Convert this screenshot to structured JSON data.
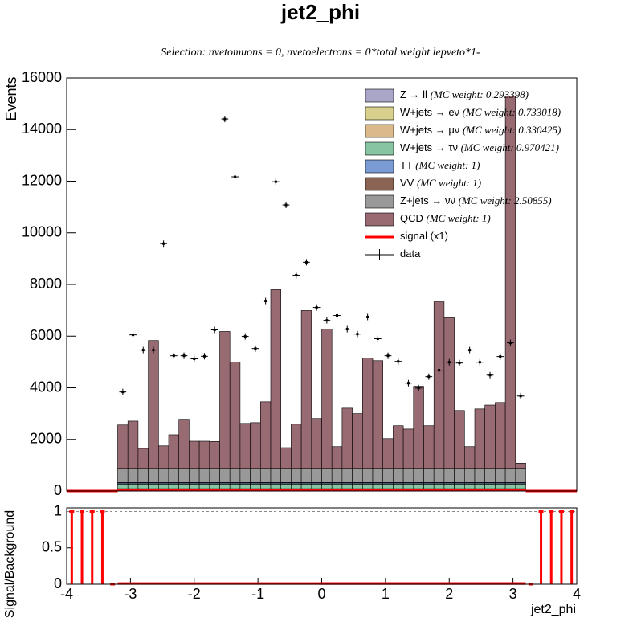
{
  "chart_data": [
    {
      "type": "histogram",
      "title": "jet2_phi",
      "subtitle": "Selection: nvetomuons = 0, nvetoelectrons = 0*total weight lepveto*1-",
      "ylabel": "Events",
      "xlim": [
        -4,
        4
      ],
      "xticks": [
        -4,
        -3,
        -2,
        -1,
        0,
        1,
        2,
        3,
        4
      ],
      "ylim": [
        0,
        16000
      ],
      "yticks": [
        0,
        2000,
        4000,
        6000,
        8000,
        10000,
        12000,
        14000,
        16000
      ],
      "bins": [
        -3.2,
        -3.04,
        -2.88,
        -2.72,
        -2.56,
        -2.4,
        -2.24,
        -2.08,
        -1.92,
        -1.76,
        -1.6,
        -1.44,
        -1.28,
        -1.12,
        -0.96,
        -0.8,
        -0.64,
        -0.48,
        -0.32,
        -0.16,
        0,
        0.16,
        0.32,
        0.48,
        0.64,
        0.8,
        0.96,
        1.12,
        1.28,
        1.44,
        1.6,
        1.76,
        1.92,
        2.08,
        2.24,
        2.4,
        2.56,
        2.72,
        2.88,
        3.04,
        3.2
      ],
      "series": [
        {
          "name": "Z → ll",
          "note": "(MC weight: 0.293398)",
          "color": "#aaa6c8",
          "draw": "fill",
          "values": [
            10,
            10,
            10,
            10,
            10,
            10,
            10,
            10,
            10,
            10,
            10,
            10,
            10,
            10,
            10,
            10,
            10,
            10,
            10,
            10,
            10,
            10,
            10,
            10,
            10,
            10,
            10,
            10,
            10,
            10,
            10,
            10,
            10,
            10,
            10,
            10,
            10,
            10,
            10,
            10
          ]
        },
        {
          "name": "W+jets → eν",
          "note": "(MC weight: 0.733018)",
          "color": "#d8d08c",
          "draw": "fill",
          "values": [
            20,
            20,
            20,
            20,
            20,
            20,
            20,
            20,
            20,
            20,
            20,
            20,
            20,
            20,
            20,
            20,
            20,
            20,
            20,
            20,
            20,
            20,
            20,
            20,
            20,
            20,
            20,
            20,
            20,
            20,
            20,
            20,
            20,
            20,
            20,
            20,
            20,
            20,
            20,
            20
          ]
        },
        {
          "name": "W+jets → μν",
          "note": "(MC weight: 0.330425)",
          "color": "#dcb98a",
          "draw": "fill",
          "values": [
            60,
            60,
            60,
            60,
            60,
            60,
            60,
            60,
            60,
            60,
            60,
            60,
            60,
            60,
            60,
            60,
            60,
            60,
            60,
            60,
            60,
            60,
            60,
            60,
            60,
            60,
            60,
            60,
            60,
            60,
            60,
            60,
            60,
            60,
            60,
            60,
            60,
            60,
            60,
            60
          ]
        },
        {
          "name": "W+jets → τν",
          "note": "(MC weight: 0.970421)",
          "color": "#87c4a1",
          "draw": "fill",
          "values": [
            180,
            180,
            180,
            180,
            180,
            180,
            180,
            180,
            180,
            180,
            180,
            180,
            180,
            180,
            180,
            180,
            180,
            180,
            180,
            180,
            180,
            180,
            180,
            180,
            180,
            180,
            180,
            180,
            180,
            180,
            180,
            180,
            180,
            180,
            180,
            180,
            180,
            180,
            180,
            180
          ]
        },
        {
          "name": "TT",
          "note": "(MC weight: 1)",
          "color": "#7b9bd5",
          "draw": "fill",
          "values": [
            40,
            40,
            40,
            40,
            40,
            40,
            40,
            40,
            40,
            40,
            40,
            40,
            40,
            40,
            40,
            40,
            40,
            40,
            40,
            40,
            40,
            40,
            40,
            40,
            40,
            40,
            40,
            40,
            40,
            40,
            40,
            40,
            40,
            40,
            40,
            40,
            40,
            40,
            40,
            40
          ]
        },
        {
          "name": "VV",
          "note": "(MC weight: 1)",
          "color": "#8a6353",
          "draw": "fill",
          "values": [
            20,
            20,
            20,
            20,
            20,
            20,
            20,
            20,
            20,
            20,
            20,
            20,
            20,
            20,
            20,
            20,
            20,
            20,
            20,
            20,
            20,
            20,
            20,
            20,
            20,
            20,
            20,
            20,
            20,
            20,
            20,
            20,
            20,
            20,
            20,
            20,
            20,
            20,
            20,
            20
          ]
        },
        {
          "name": "Z+jets → νν",
          "note": "(MC weight: 2.50855)",
          "color": "#999999",
          "draw": "fill",
          "values": [
            550,
            550,
            550,
            550,
            550,
            550,
            550,
            550,
            550,
            550,
            550,
            550,
            550,
            550,
            550,
            550,
            550,
            550,
            550,
            550,
            550,
            550,
            550,
            550,
            550,
            550,
            550,
            550,
            550,
            550,
            550,
            550,
            550,
            550,
            550,
            550,
            550,
            550,
            550,
            550
          ]
        },
        {
          "name": "QCD",
          "note": "(MC weight: 1)",
          "color": "#986a72",
          "draw": "fill",
          "values": [
            1680,
            1830,
            770,
            4950,
            870,
            1300,
            1870,
            1050,
            1050,
            1040,
            5300,
            4110,
            1740,
            1770,
            2580,
            6920,
            800,
            1710,
            6110,
            1930,
            5390,
            840,
            2330,
            2120,
            4270,
            4170,
            1150,
            1650,
            1520,
            3180,
            1650,
            6450,
            5830,
            2240,
            840,
            2300,
            2450,
            2550,
            14420,
            200
          ]
        },
        {
          "name": "signal (x1)",
          "color": "#ff0000",
          "draw": "line",
          "bins": [
            -4,
            -3.2,
            3.2,
            4
          ],
          "values": [
            1,
            30,
            1
          ]
        },
        {
          "name": "data",
          "color": "#000000",
          "draw": "points",
          "values": [
            3840,
            6050,
            5460,
            5460,
            9580,
            5240,
            5240,
            5120,
            5220,
            6240,
            14410,
            12170,
            5990,
            5520,
            7360,
            11980,
            11080,
            8360,
            8860,
            7110,
            6610,
            6800,
            6270,
            6080,
            6740,
            5900,
            5240,
            5020,
            4180,
            3990,
            4430,
            4680,
            4990,
            4960,
            5460,
            4990,
            4490,
            5210,
            5740,
            3680
          ]
        }
      ]
    },
    {
      "type": "histogram",
      "ylabel": "Signal/Background",
      "xlabel": "jet2_phi",
      "xlim": [
        -4,
        4
      ],
      "xticks": [
        -4,
        -3,
        -2,
        -1,
        0,
        1,
        2,
        3,
        4
      ],
      "xtick_labels": true,
      "ylim": [
        0,
        1.05
      ],
      "yticks": [
        0,
        0.5,
        1
      ],
      "reference_line": 1,
      "bins": [
        -4,
        -3.84,
        -3.68,
        -3.52,
        -3.36,
        -3.2,
        3.2,
        3.36,
        3.52,
        3.68,
        3.84,
        4
      ],
      "series": [
        {
          "color": "#ff0000",
          "draw": "bars",
          "values": [
            1,
            1,
            1,
            1,
            0,
            0.01,
            0,
            1,
            1,
            1,
            1
          ]
        }
      ]
    }
  ]
}
